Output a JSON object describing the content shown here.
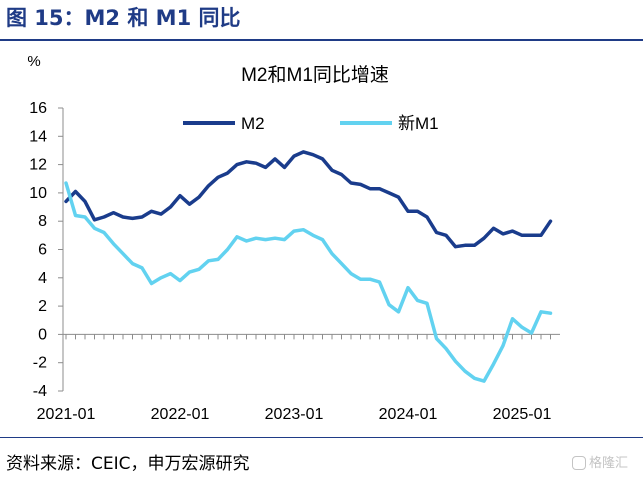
{
  "header": {
    "title": "图 15：M2 和 M1 同比"
  },
  "footer": {
    "source": "资料来源：CEIC，申万宏源研究",
    "watermark": "格隆汇"
  },
  "chart_data": {
    "type": "line",
    "title": "M2和M1同比增速",
    "ylabel": "%",
    "xlabel": "",
    "ylim": [
      -4,
      16
    ],
    "yticks": [
      16,
      14,
      12,
      10,
      8,
      6,
      4,
      2,
      0,
      -2,
      -4
    ],
    "x_tick_labels": [
      "2021-01",
      "2022-01",
      "2023-01",
      "2024-01",
      "2025-01"
    ],
    "x_tick_index": [
      0,
      12,
      24,
      36,
      48
    ],
    "legend_position": "top",
    "series": [
      {
        "name": "M2",
        "color": "#1a3c8c",
        "values": [
          9.4,
          10.1,
          9.4,
          8.1,
          8.3,
          8.6,
          8.3,
          8.2,
          8.3,
          8.7,
          8.5,
          9.0,
          9.8,
          9.2,
          9.7,
          10.5,
          11.1,
          11.4,
          12.0,
          12.2,
          12.1,
          11.8,
          12.4,
          11.8,
          12.6,
          12.9,
          12.7,
          12.4,
          11.6,
          11.3,
          10.7,
          10.6,
          10.3,
          10.3,
          10.0,
          9.7,
          8.7,
          8.7,
          8.3,
          7.2,
          7.0,
          6.2,
          6.3,
          6.3,
          6.8,
          7.5,
          7.1,
          7.3,
          7.0,
          7.0,
          7.0,
          8.0
        ]
      },
      {
        "name": "新M1",
        "color": "#62d2f0",
        "values": [
          10.7,
          8.4,
          8.3,
          7.5,
          7.2,
          6.4,
          5.7,
          5.0,
          4.7,
          3.6,
          4.0,
          4.3,
          3.8,
          4.4,
          4.6,
          5.2,
          5.3,
          6.0,
          6.9,
          6.6,
          6.8,
          6.7,
          6.8,
          6.7,
          7.3,
          7.4,
          7.0,
          6.7,
          5.7,
          5.0,
          4.3,
          3.9,
          3.9,
          3.7,
          2.1,
          1.6,
          3.3,
          2.4,
          2.2,
          -0.3,
          -1.0,
          -1.9,
          -2.6,
          -3.1,
          -3.3,
          -2.1,
          -0.8,
          1.1,
          0.5,
          0.1,
          1.6,
          1.5
        ]
      }
    ]
  }
}
